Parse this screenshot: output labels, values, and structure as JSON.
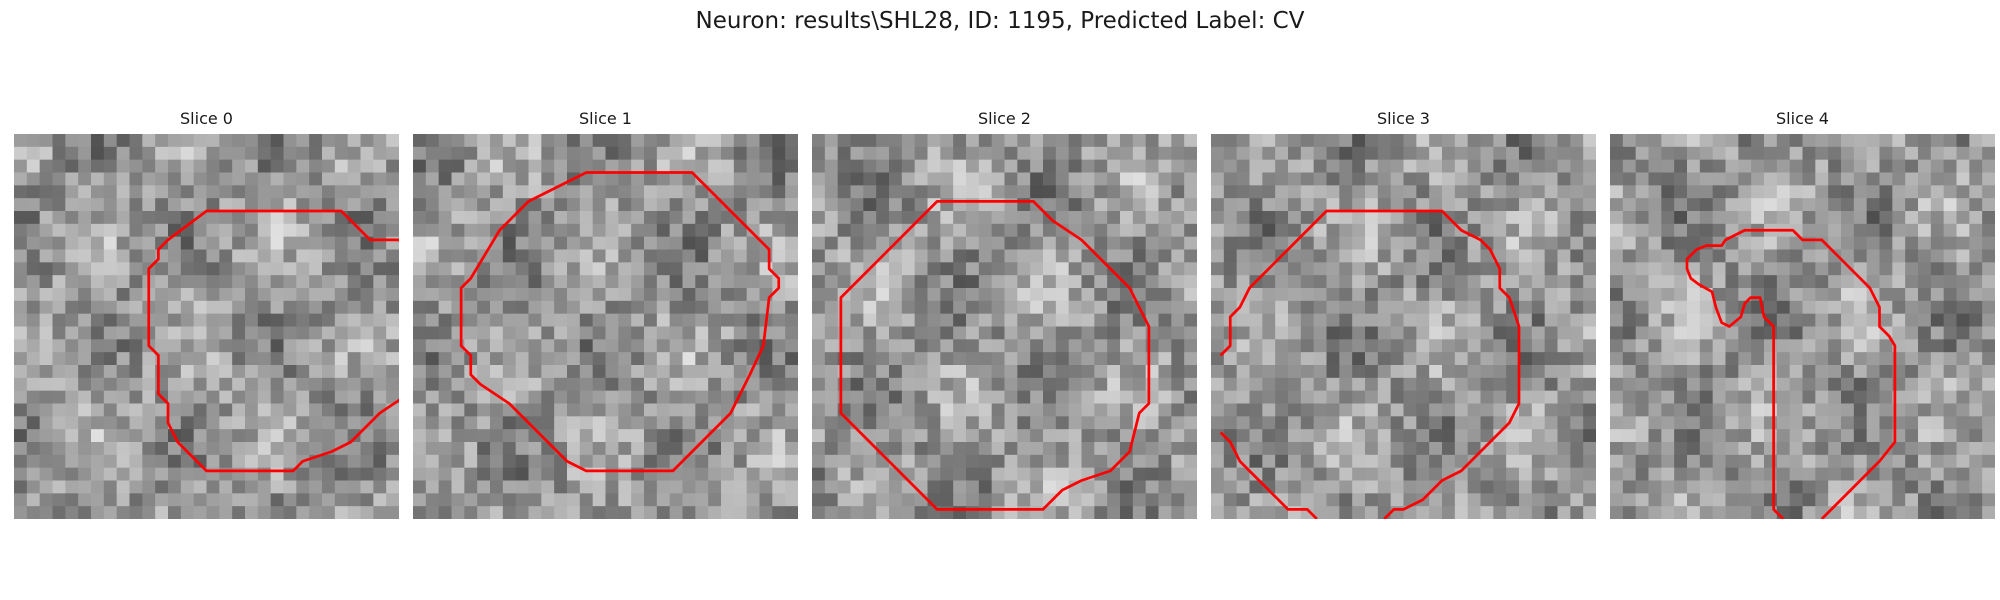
{
  "figure": {
    "title": "Neuron: results\\SHL28, ID: 1195, Predicted Label: CV",
    "contour_color": "#ff0000",
    "colormap": "gray",
    "panels": [
      {
        "title": "Slice 0",
        "seed": 11,
        "contour": [
          [
            12,
            4
          ],
          [
            17,
            4
          ],
          [
            18.5,
            5.5
          ],
          [
            20,
            5.5
          ],
          [
            20.8,
            6.5
          ],
          [
            22.2,
            6.5
          ],
          [
            22.8,
            7.2
          ],
          [
            23,
            8.5
          ],
          [
            22.2,
            11
          ],
          [
            21.8,
            12.5
          ],
          [
            20.5,
            13.5
          ],
          [
            19,
            14.5
          ],
          [
            17.5,
            16
          ],
          [
            16.5,
            16.5
          ],
          [
            15,
            17
          ],
          [
            14.5,
            17.5
          ],
          [
            10,
            17.5
          ],
          [
            9.5,
            17
          ],
          [
            8.5,
            16
          ],
          [
            8,
            15
          ],
          [
            8,
            14
          ],
          [
            7.5,
            13.5
          ],
          [
            7.5,
            11.5
          ],
          [
            7,
            11
          ],
          [
            7,
            7
          ],
          [
            7.5,
            6.5
          ],
          [
            7.5,
            6
          ],
          [
            8,
            5.5
          ],
          [
            10,
            4
          ]
        ],
        "closed": true
      },
      {
        "title": "Slice 1",
        "seed": 23,
        "contour": [
          [
            9,
            2
          ],
          [
            14.5,
            2
          ],
          [
            15.5,
            3
          ],
          [
            17.5,
            5
          ],
          [
            18.5,
            6
          ],
          [
            18.5,
            7
          ],
          [
            19,
            7.5
          ],
          [
            19,
            8
          ],
          [
            18.5,
            8.5
          ],
          [
            18.2,
            11
          ],
          [
            17.5,
            12.5
          ],
          [
            17,
            13.5
          ],
          [
            16.5,
            14.5
          ],
          [
            15,
            16
          ],
          [
            14,
            17
          ],
          [
            13.5,
            17.5
          ],
          [
            9,
            17.5
          ],
          [
            8,
            17
          ],
          [
            7,
            16
          ],
          [
            6,
            15
          ],
          [
            5,
            14
          ],
          [
            3.5,
            13
          ],
          [
            3,
            12.5
          ],
          [
            3,
            11.5
          ],
          [
            2.5,
            11
          ],
          [
            2.5,
            8
          ],
          [
            3,
            7.5
          ],
          [
            4.5,
            5
          ],
          [
            5.5,
            4
          ],
          [
            6,
            3.5
          ],
          [
            7,
            3
          ],
          [
            8,
            2.5
          ]
        ],
        "closed": true
      },
      {
        "title": "Slice 2",
        "seed": 37,
        "contour": [
          [
            6.5,
            3.5
          ],
          [
            11.5,
            3.5
          ],
          [
            12.5,
            4.5
          ],
          [
            14,
            5.5
          ],
          [
            15,
            6.5
          ],
          [
            16,
            7.5
          ],
          [
            16.5,
            8
          ],
          [
            17,
            9
          ],
          [
            17.5,
            10
          ],
          [
            17.5,
            14
          ],
          [
            17,
            14.5
          ],
          [
            16.5,
            16.5
          ],
          [
            15.5,
            17.5
          ],
          [
            14,
            18
          ],
          [
            13,
            18.5
          ],
          [
            12,
            19.5
          ],
          [
            6.5,
            19.5
          ],
          [
            5,
            18
          ],
          [
            4.5,
            17.5
          ],
          [
            3.5,
            16.5
          ],
          [
            2,
            15
          ],
          [
            1.5,
            14.5
          ],
          [
            1.5,
            8.5
          ],
          [
            2,
            8
          ],
          [
            3,
            7
          ],
          [
            4,
            6
          ],
          [
            5,
            5
          ],
          [
            6,
            4
          ]
        ],
        "closed": true
      },
      {
        "title": "Slice 3",
        "seed": 53,
        "contour": [
          [
            0.5,
            11.5
          ],
          [
            1,
            11
          ],
          [
            1,
            9.5
          ],
          [
            1.5,
            9
          ],
          [
            2,
            8
          ],
          [
            3,
            7
          ],
          [
            4,
            6
          ],
          [
            5,
            5
          ],
          [
            5.5,
            4.5
          ],
          [
            6,
            4
          ],
          [
            12,
            4
          ],
          [
            13,
            5
          ],
          [
            14,
            5.5
          ],
          [
            14.5,
            6
          ],
          [
            15,
            7
          ],
          [
            15,
            8
          ],
          [
            15.5,
            8.5
          ],
          [
            16,
            10
          ],
          [
            16,
            14
          ],
          [
            15.5,
            15
          ],
          [
            15,
            15.5
          ],
          [
            14,
            16.5
          ],
          [
            13,
            17.5
          ],
          [
            12,
            18
          ],
          [
            11.5,
            18.5
          ],
          [
            11,
            19
          ],
          [
            10,
            19.5
          ],
          [
            9.5,
            19.5
          ],
          [
            9,
            20
          ]
        ],
        "contour_b": [
          [
            0.5,
            15.5
          ],
          [
            1,
            16
          ],
          [
            1.5,
            17
          ],
          [
            2.5,
            18
          ],
          [
            3,
            18.5
          ],
          [
            4,
            19.5
          ],
          [
            5,
            19.5
          ],
          [
            5.5,
            20
          ]
        ],
        "closed": false
      },
      {
        "title": "Slice 4",
        "seed": 71,
        "contour": [
          [
            9,
            20
          ],
          [
            8.5,
            19.5
          ],
          [
            8.5,
            10
          ],
          [
            8,
            9.5
          ],
          [
            7.8,
            8.5
          ],
          [
            7.3,
            8.5
          ],
          [
            7,
            8.8
          ],
          [
            6.8,
            9.5
          ],
          [
            6.2,
            10
          ],
          [
            5.8,
            9.8
          ],
          [
            5.5,
            9
          ],
          [
            5.3,
            8.2
          ],
          [
            4.6,
            7.8
          ],
          [
            4.2,
            7.5
          ],
          [
            4,
            7
          ],
          [
            4,
            6.5
          ],
          [
            4.5,
            6
          ],
          [
            5,
            5.8
          ],
          [
            5.8,
            5.8
          ],
          [
            6,
            5.5
          ],
          [
            7,
            5
          ],
          [
            9.5,
            5
          ],
          [
            10,
            5.5
          ],
          [
            11,
            5.5
          ],
          [
            11.5,
            6
          ],
          [
            13.5,
            8
          ],
          [
            14,
            9
          ],
          [
            14,
            10
          ],
          [
            14.5,
            10.5
          ],
          [
            14.8,
            11
          ],
          [
            14.8,
            16
          ],
          [
            14,
            17
          ],
          [
            13,
            18
          ],
          [
            12.5,
            18.5
          ],
          [
            11.5,
            19.5
          ],
          [
            11,
            20
          ]
        ],
        "closed": false
      }
    ]
  }
}
